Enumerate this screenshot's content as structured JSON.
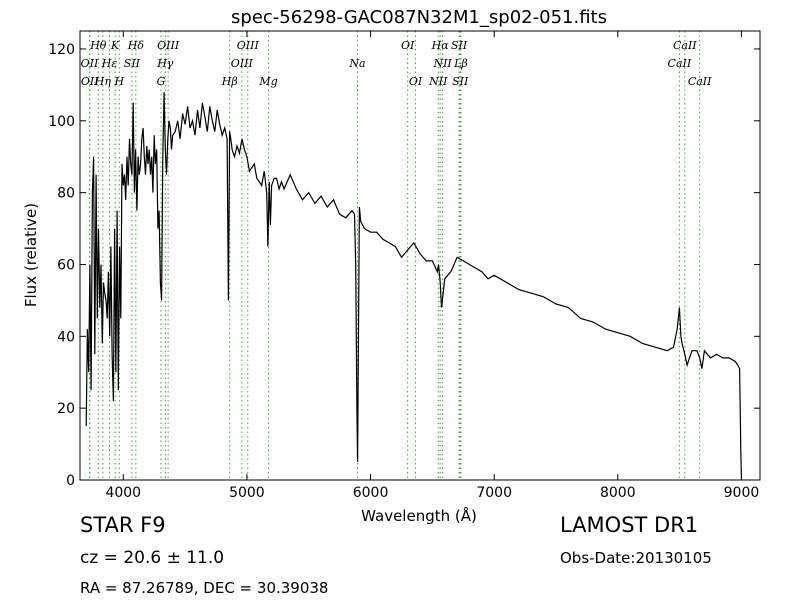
{
  "chart_data": {
    "type": "line",
    "title": "spec-56298-GAC087N32M1_sp02-051.fits",
    "xlabel": "Wavelength (Å)",
    "ylabel": "Flux (relative)",
    "xlim": [
      3650,
      9150
    ],
    "ylim": [
      0,
      125
    ],
    "xticks": [
      4000,
      5000,
      6000,
      7000,
      8000,
      9000
    ],
    "yticks": [
      0,
      20,
      40,
      60,
      80,
      100,
      120
    ],
    "line_color": "#000000",
    "marker_color": "#33aa33",
    "grid": false,
    "series": [
      {
        "x": [
          3700,
          3710,
          3720,
          3730,
          3740,
          3750,
          3760,
          3770,
          3780,
          3790,
          3800,
          3810,
          3820,
          3830,
          3840,
          3850,
          3860,
          3870,
          3880,
          3890,
          3900,
          3910,
          3920,
          3930,
          3940,
          3950,
          3960,
          3970,
          3980,
          3990,
          4000,
          4010,
          4020,
          4030,
          4040,
          4050,
          4060,
          4070,
          4080,
          4090,
          4100,
          4110,
          4120,
          4130,
          4140,
          4150,
          4160,
          4170,
          4180,
          4190,
          4200,
          4210,
          4220,
          4230,
          4240,
          4250,
          4260,
          4270,
          4280,
          4290,
          4300,
          4310,
          4320,
          4330,
          4340,
          4350,
          4360,
          4370,
          4380,
          4390,
          4400,
          4420,
          4440,
          4460,
          4480,
          4500,
          4520,
          4540,
          4560,
          4580,
          4600,
          4620,
          4640,
          4660,
          4680,
          4700,
          4720,
          4740,
          4760,
          4780,
          4800,
          4820,
          4840,
          4850,
          4860,
          4870,
          4880,
          4900,
          4920,
          4940,
          4960,
          4980,
          5000,
          5020,
          5040,
          5060,
          5080,
          5100,
          5120,
          5140,
          5160,
          5170,
          5180,
          5190,
          5200,
          5220,
          5240,
          5260,
          5280,
          5300,
          5350,
          5400,
          5450,
          5500,
          5550,
          5600,
          5650,
          5700,
          5750,
          5800,
          5850,
          5870,
          5880,
          5890,
          5895,
          5900,
          5910,
          5920,
          5950,
          6000,
          6050,
          6100,
          6150,
          6200,
          6250,
          6300,
          6350,
          6400,
          6450,
          6500,
          6540,
          6550,
          6563,
          6575,
          6600,
          6650,
          6700,
          6750,
          6800,
          6850,
          6900,
          6950,
          7000,
          7100,
          7200,
          7300,
          7400,
          7500,
          7600,
          7700,
          7800,
          7900,
          8000,
          8100,
          8200,
          8300,
          8400,
          8450,
          8480,
          8498,
          8510,
          8520,
          8542,
          8560,
          8600,
          8640,
          8662,
          8680,
          8700,
          8750,
          8800,
          8850,
          8900,
          8950,
          8970,
          8985,
          8990,
          8995,
          9000
        ],
        "y": [
          15,
          42,
          30,
          60,
          25,
          80,
          90,
          35,
          85,
          45,
          70,
          48,
          60,
          38,
          55,
          52,
          50,
          45,
          58,
          40,
          65,
          35,
          22,
          70,
          30,
          75,
          25,
          65,
          45,
          88,
          82,
          85,
          78,
          90,
          82,
          95,
          88,
          85,
          105,
          80,
          92,
          75,
          90,
          85,
          88,
          95,
          98,
          90,
          85,
          93,
          88,
          92,
          85,
          90,
          80,
          96,
          88,
          92,
          70,
          75,
          55,
          50,
          90,
          108,
          92,
          85,
          95,
          100,
          98,
          92,
          96,
          97,
          100,
          95,
          102,
          99,
          104,
          98,
          100,
          96,
          103,
          98,
          105,
          101,
          97,
          104,
          100,
          97,
          103,
          99,
          96,
          98,
          95,
          50,
          97,
          95,
          92,
          90,
          93,
          91,
          95,
          92,
          90,
          86,
          87,
          88,
          84,
          83,
          82,
          86,
          80,
          65,
          83,
          71,
          82,
          84,
          84,
          81,
          83,
          81,
          85,
          81,
          78,
          80,
          77,
          79,
          76,
          78,
          74,
          73,
          75,
          74,
          60,
          20,
          5,
          30,
          76,
          72,
          70,
          69,
          69,
          67,
          66,
          65,
          62,
          64,
          66,
          63,
          61,
          61,
          58,
          60,
          55,
          48,
          56,
          58,
          62,
          61,
          60,
          59,
          58,
          56,
          57,
          55,
          53,
          52,
          51,
          49,
          48,
          45,
          44,
          42,
          41,
          40,
          38,
          37,
          36,
          37,
          42,
          48,
          40,
          38,
          35,
          32,
          36,
          36,
          34,
          31,
          36,
          34,
          35,
          34,
          34,
          33,
          32,
          31,
          20,
          8,
          0
        ]
      }
    ],
    "spectral_lines": [
      {
        "label": "Hθ",
        "wavelength": 3798,
        "row": 0
      },
      {
        "label": "K",
        "wavelength": 3934,
        "row": 0
      },
      {
        "label": "Hδ",
        "wavelength": 4102,
        "row": 0
      },
      {
        "label": "OIII",
        "wavelength": 4363,
        "row": 0
      },
      {
        "label": "OII",
        "wavelength": 3727,
        "row": 1
      },
      {
        "label": "Hε",
        "wavelength": 3889,
        "row": 1
      },
      {
        "label": "SII",
        "wavelength": 4070,
        "row": 1
      },
      {
        "label": "Hγ",
        "wavelength": 4340,
        "row": 1
      },
      {
        "label": "OII",
        "wavelength": 3729,
        "row": 2
      },
      {
        "label": "Hη",
        "wavelength": 3835,
        "row": 2
      },
      {
        "label": "H",
        "wavelength": 3968,
        "row": 2
      },
      {
        "label": "G",
        "wavelength": 4305,
        "row": 2
      },
      {
        "label": "OIII",
        "wavelength": 5007,
        "row": 0
      },
      {
        "label": "OIII",
        "wavelength": 4959,
        "row": 1
      },
      {
        "label": "Hβ",
        "wavelength": 4861,
        "row": 2
      },
      {
        "label": "Mg",
        "wavelength": 5175,
        "row": 2
      },
      {
        "label": "Na",
        "wavelength": 5894,
        "row": 1
      },
      {
        "label": "OI",
        "wavelength": 6300,
        "row": 0
      },
      {
        "label": "OI",
        "wavelength": 6364,
        "row": 2
      },
      {
        "label": "Hα",
        "wavelength": 6563,
        "row": 0
      },
      {
        "label": "SII",
        "wavelength": 6716,
        "row": 0
      },
      {
        "label": "NII",
        "wavelength": 6583,
        "row": 1
      },
      {
        "label": "Lβ",
        "wavelength": 6731,
        "row": 1
      },
      {
        "label": "NII",
        "wavelength": 6548,
        "row": 2
      },
      {
        "label": "SII",
        "wavelength": 6725,
        "row": 2
      },
      {
        "label": "CaII",
        "wavelength": 8542,
        "row": 0
      },
      {
        "label": "CaII",
        "wavelength": 8498,
        "row": 1
      },
      {
        "label": "CaII",
        "wavelength": 8662,
        "row": 2
      }
    ]
  },
  "info": {
    "object_class": "STAR   F9",
    "cz": "cz = 20.6 ± 11.0",
    "radec": "RA = 87.26789, DEC = 30.39038",
    "survey": "LAMOST DR1",
    "obs_date": "Obs-Date:20130105"
  }
}
